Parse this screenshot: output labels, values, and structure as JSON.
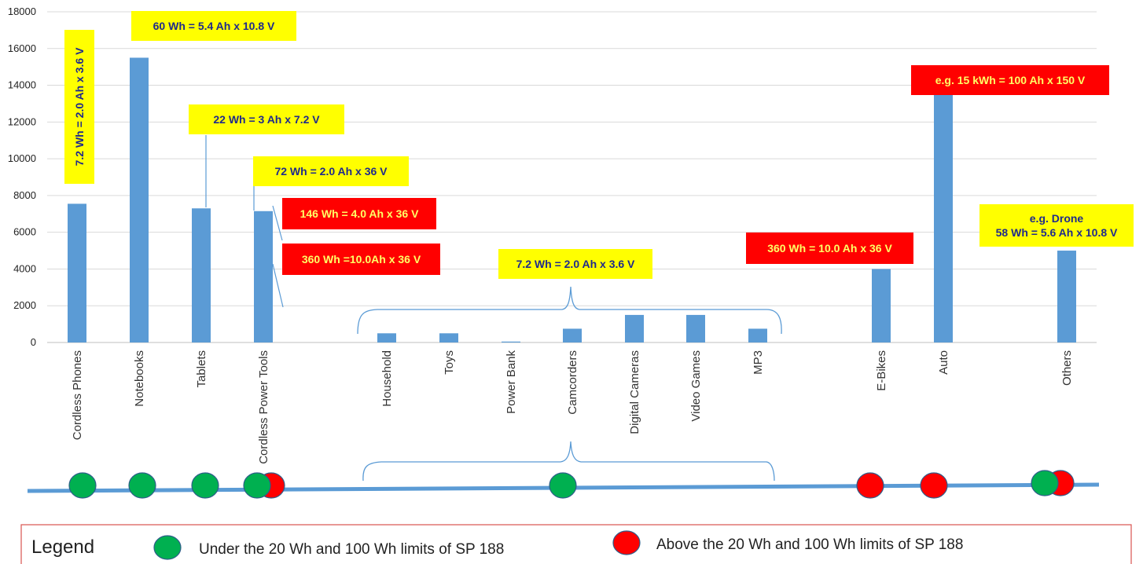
{
  "chart_data": {
    "type": "bar",
    "title": "",
    "xlabel": "",
    "ylabel": "",
    "ylim": [
      0,
      18000
    ],
    "yticks": [
      0,
      2000,
      4000,
      6000,
      8000,
      10000,
      12000,
      14000,
      16000,
      18000
    ],
    "grid": true,
    "bar_color": "#5b9bd5",
    "categories": [
      "Cordless Phones",
      "Notebooks",
      "Tablets",
      "Cordless Power Tools",
      "Household",
      "Toys",
      "Power Bank",
      "Camcorders",
      "Digital Cameras",
      "Video Games",
      "MP3",
      "E-Bikes",
      "Auto",
      "Others"
    ],
    "values": [
      7550,
      15500,
      7300,
      7150,
      500,
      500,
      50,
      750,
      1500,
      1500,
      750,
      4000,
      13700,
      5000
    ],
    "annotations": [
      {
        "text": "7.2 Wh = 2.0 Ah x 3.6 V",
        "style": "yellow",
        "orientation": "vertical"
      },
      {
        "text": "60 Wh = 5.4 Ah x 10.8 V",
        "style": "yellow"
      },
      {
        "text": "22 Wh = 3 Ah x 7.2 V",
        "style": "yellow"
      },
      {
        "text": "72 Wh = 2.0 Ah x 36 V",
        "style": "yellow"
      },
      {
        "text": "146 Wh = 4.0 Ah x 36 V",
        "style": "red"
      },
      {
        "text": "360 Wh =10.0Ah x 36 V",
        "style": "red"
      },
      {
        "text": "7.2 Wh = 2.0 Ah x 3.6 V",
        "style": "yellow"
      },
      {
        "text": "360 Wh = 10.0 Ah x 36 V",
        "style": "red"
      },
      {
        "text": "e.g. 15 kWh = 100 Ah x 150 V",
        "style": "red"
      },
      {
        "text": "e.g. Drone\n58 Wh = 5.6 Ah x 10.8 V",
        "style": "yellow"
      }
    ],
    "markers": [
      {
        "category": "Cordless Phones",
        "colors": [
          "green"
        ]
      },
      {
        "category": "Notebooks",
        "colors": [
          "green"
        ]
      },
      {
        "category": "Tablets",
        "colors": [
          "green"
        ]
      },
      {
        "category": "Cordless Power Tools",
        "colors": [
          "green",
          "red"
        ]
      },
      {
        "category": "Household … MP3",
        "colors": [
          "green"
        ]
      },
      {
        "category": "E-Bikes",
        "colors": [
          "red"
        ]
      },
      {
        "category": "Auto",
        "colors": [
          "red"
        ]
      },
      {
        "category": "Others",
        "colors": [
          "green",
          "red"
        ]
      }
    ]
  },
  "legend": {
    "title": "Legend",
    "items": [
      {
        "label": "Under the 20 Wh and 100 Wh limits of SP 188",
        "color": "#00b050"
      },
      {
        "label": "Above the 20 Wh and 100 Wh limits of SP 188",
        "color": "#ff0000"
      }
    ]
  },
  "colors": {
    "yellow_box": "#ffff00",
    "yellow_text": "#1f2a8c",
    "red_box": "#ff0000",
    "red_text": "#ffff66",
    "line": "#5b9bd5",
    "legend_border": "#d9534f"
  }
}
